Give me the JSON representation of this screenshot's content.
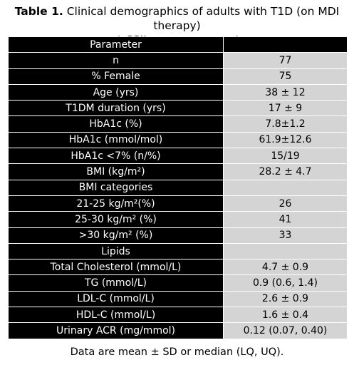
{
  "caption": {
    "label": "Table 1.",
    "line1": " Clinical demographics of adults with T1D (on MDI therapy)",
    "line2": "at CSII commencement."
  },
  "table": {
    "header": "Parameter",
    "rows": [
      {
        "label": "n",
        "value": "77"
      },
      {
        "label": "% Female",
        "value": "75"
      },
      {
        "label": "Age (yrs)",
        "value": "38 ± 12"
      },
      {
        "label": "T1DM duration (yrs)",
        "value": "17 ± 9"
      },
      {
        "label": "HbA1c (%)",
        "value": "7.8±1.2"
      },
      {
        "label": "HbA1c (mmol/mol)",
        "value": "61.9±12.6"
      },
      {
        "label": "HbA1c <7% (n/%)",
        "value": "15/19"
      },
      {
        "label": "BMI (kg/m²)",
        "value": "28.2 ± 4.7"
      },
      {
        "label": "BMI categories",
        "value": ""
      },
      {
        "label": "21-25 kg/m²(%)",
        "value": "26"
      },
      {
        "label": "25-30 kg/m² (%)",
        "value": "41"
      },
      {
        "label": ">30 kg/m² (%)",
        "value": "33"
      },
      {
        "label": "Lipids",
        "value": ""
      },
      {
        "label": "Total Cholesterol (mmol/L)",
        "value": "4.7 ± 0.9"
      },
      {
        "label": "TG (mmol/L)",
        "value": "0.9 (0.6, 1.4)"
      },
      {
        "label": "LDL-C (mmol/L)",
        "value": "2.6 ± 0.9"
      },
      {
        "label": "HDL-C (mmol/L)",
        "value": "1.6 ± 0.4"
      },
      {
        "label": "Urinary ACR (mg/mmol)",
        "value": "0.12 (0.07, 0.40)"
      }
    ]
  },
  "footnote": "Data are mean ± SD or median (LQ, UQ).",
  "colors": {
    "header_bg": "#000000",
    "label_bg": "#000000",
    "value_bg": "#d4d4d4"
  }
}
